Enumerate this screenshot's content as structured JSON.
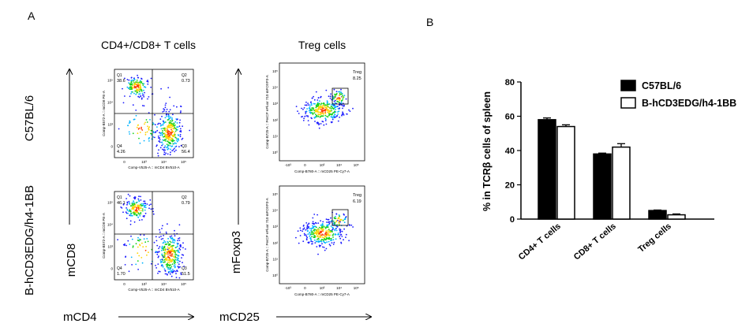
{
  "panel_a": {
    "label": "A",
    "col1_title": "CD4+/CD8+ T cells",
    "col2_title": "Treg cells",
    "row1_label": "C57BL/6",
    "row2_label": "B-hCD3EDG/h4-1BB",
    "axis_y_col1": "mCD8",
    "axis_x_col1": "mCD4",
    "axis_y_col2": "mFoxp3",
    "axis_x_col2": "mCD25",
    "cd_plot_xaxis": "Comp-V525-A :: mCD4 BV510-A",
    "cd_plot_yaxis": "Comp-B572-A :: mCD8 PE-A",
    "treg_plot_xaxis": "Comp-B780-A :: mCD25 PE-Cy7-A",
    "treg_plot_yaxis": "Comp-B725-A :: PerCP eFluor 710 mFOXP3-A",
    "exp_ticks": [
      "10⁰",
      "10¹",
      "10²",
      "10³",
      "10⁴",
      "10⁵"
    ],
    "lin_ticks": [
      "0",
      "10³",
      "10⁴",
      "10⁵"
    ],
    "neg_ticks": [
      "-10³",
      "0",
      "10³",
      "10⁴",
      "10⁵"
    ],
    "quadrant_names": [
      "Q1",
      "Q2",
      "Q3",
      "Q4"
    ],
    "treg_gate_name": "Treg",
    "cd_plots": [
      {
        "q1": "38.6",
        "q2": "0.73",
        "q3": "56.4",
        "q4": "4.26"
      },
      {
        "q1": "46.1",
        "q2": "0.79",
        "q3": "51.5",
        "q4": "1.70"
      }
    ],
    "treg_plots": [
      {
        "value": "8.25"
      },
      {
        "value": "6.19"
      }
    ]
  },
  "chart_data": {
    "panel_label": "B",
    "type": "bar",
    "categories": [
      "CD4+ T cells",
      "CD8+ T cells",
      "Treg cells"
    ],
    "ylabel": "% in TCRβ cells of spleen",
    "ylim": [
      0,
      80
    ],
    "yticks": [
      "0",
      "20",
      "40",
      "60",
      "80"
    ],
    "legend_position": "top-right",
    "series": [
      {
        "name": "C57BL/6",
        "values": [
          58,
          38,
          5
        ],
        "errors": [
          1,
          0.5,
          0.3
        ],
        "fill": "#000000"
      },
      {
        "name": "B-hCD3EDG/h4-1BB",
        "values": [
          54,
          42,
          2.5
        ],
        "errors": [
          1,
          2,
          0.5
        ],
        "fill": "#ffffff"
      }
    ]
  }
}
